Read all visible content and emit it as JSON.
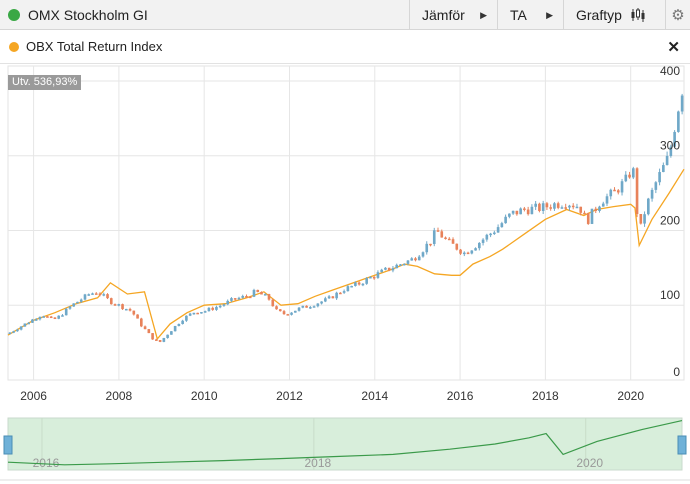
{
  "toolbar": {
    "title": "OMX Stockholm GI",
    "title_color": "#3aa845",
    "compare_label": "Jämför",
    "ta_label": "TA",
    "charttype_label": "Graftyp",
    "charttype_icon": "candlestick-icon",
    "settings_icon": "gear-icon",
    "arrow_glyph": "▶",
    "gear_glyph": "⚙"
  },
  "comparison": {
    "label": "OBX Total Return Index",
    "color": "#f5a623",
    "close_glyph": "✕"
  },
  "badge": {
    "text": "Utv. 536,93%"
  },
  "chart_data": {
    "type": "line",
    "x_unit": "year",
    "xlim": [
      2005.4,
      2021.25
    ],
    "ylim": [
      0,
      420
    ],
    "x_ticks": [
      2006,
      2008,
      2010,
      2012,
      2014,
      2016,
      2018,
      2020
    ],
    "x_tick_labels": [
      "2006",
      "2008",
      "2010",
      "2012",
      "2014",
      "2016",
      "2018",
      "2020"
    ],
    "y_ticks": [
      0,
      100,
      200,
      300,
      400
    ],
    "y_tick_labels": [
      "0",
      "100",
      "200",
      "300",
      "400"
    ],
    "grid": true,
    "series": [
      {
        "name": "OMX Stockholm GI",
        "style": "candlestick",
        "up_color": "#6fa8c8",
        "down_color": "#e8825a",
        "x": [
          2005.4,
          2005.8,
          2006.2,
          2006.45,
          2006.6,
          2006.9,
          2007.3,
          2007.5,
          2007.8,
          2008.0,
          2008.3,
          2008.5,
          2008.8,
          2008.95,
          2009.2,
          2009.5,
          2009.8,
          2010.0,
          2010.4,
          2010.7,
          2011.0,
          2011.2,
          2011.5,
          2011.7,
          2011.9,
          2012.2,
          2012.5,
          2012.9,
          2013.3,
          2013.6,
          2014.0,
          2014.3,
          2014.6,
          2014.9,
          2015.3,
          2015.45,
          2015.7,
          2015.9,
          2016.1,
          2016.4,
          2016.8,
          2017.2,
          2017.5,
          2017.9,
          2018.2,
          2018.5,
          2018.8,
          2018.97,
          2019.3,
          2019.6,
          2019.9,
          2020.05,
          2020.2,
          2020.35,
          2020.6,
          2020.9,
          2021.1,
          2021.25
        ],
        "values": [
          62,
          75,
          88,
          80,
          85,
          100,
          115,
          118,
          105,
          100,
          92,
          75,
          55,
          50,
          65,
          82,
          92,
          92,
          100,
          108,
          112,
          118,
          110,
          92,
          88,
          95,
          100,
          108,
          122,
          128,
          140,
          148,
          155,
          162,
          185,
          200,
          185,
          178,
          170,
          182,
          200,
          222,
          228,
          230,
          235,
          238,
          232,
          212,
          240,
          250,
          268,
          285,
          195,
          230,
          265,
          300,
          360,
          400
        ]
      },
      {
        "name": "OBX Total Return Index",
        "style": "line",
        "color": "#f5a623",
        "x": [
          2005.4,
          2006.0,
          2006.5,
          2007.0,
          2007.5,
          2007.8,
          2008.2,
          2008.6,
          2008.9,
          2009.2,
          2009.6,
          2010.0,
          2010.5,
          2011.0,
          2011.4,
          2011.8,
          2012.2,
          2012.6,
          2013.0,
          2013.5,
          2014.0,
          2014.4,
          2014.7,
          2015.0,
          2015.4,
          2015.8,
          2016.0,
          2016.3,
          2016.7,
          2017.0,
          2017.5,
          2018.0,
          2018.5,
          2018.9,
          2019.2,
          2019.6,
          2020.0,
          2020.1,
          2020.2,
          2020.5,
          2020.9,
          2021.25
        ],
        "values": [
          60,
          80,
          90,
          102,
          110,
          130,
          115,
          118,
          55,
          75,
          90,
          100,
          102,
          110,
          118,
          100,
          102,
          112,
          120,
          130,
          140,
          148,
          155,
          152,
          142,
          140,
          140,
          155,
          165,
          175,
          195,
          215,
          228,
          220,
          228,
          232,
          235,
          230,
          180,
          215,
          250,
          282
        ]
      }
    ]
  },
  "navigator": {
    "x_tick_labels": [
      "2016",
      "2018",
      "2020"
    ],
    "x_ticks": [
      2015.6,
      2018.0,
      2020.4
    ],
    "xlim": [
      2015.3,
      2021.25
    ],
    "line_color": "#3b9a4a",
    "fill_color": "#d8eedb",
    "x": [
      2015.3,
      2015.8,
      2016.2,
      2016.7,
      2017.2,
      2017.7,
      2018.2,
      2018.7,
      2019.2,
      2019.6,
      2019.9,
      2020.05,
      2020.2,
      2020.5,
      2020.9,
      2021.25
    ],
    "values": [
      0.15,
      0.1,
      0.12,
      0.15,
      0.18,
      0.22,
      0.26,
      0.3,
      0.4,
      0.5,
      0.62,
      0.7,
      0.3,
      0.55,
      0.78,
      0.95
    ]
  }
}
